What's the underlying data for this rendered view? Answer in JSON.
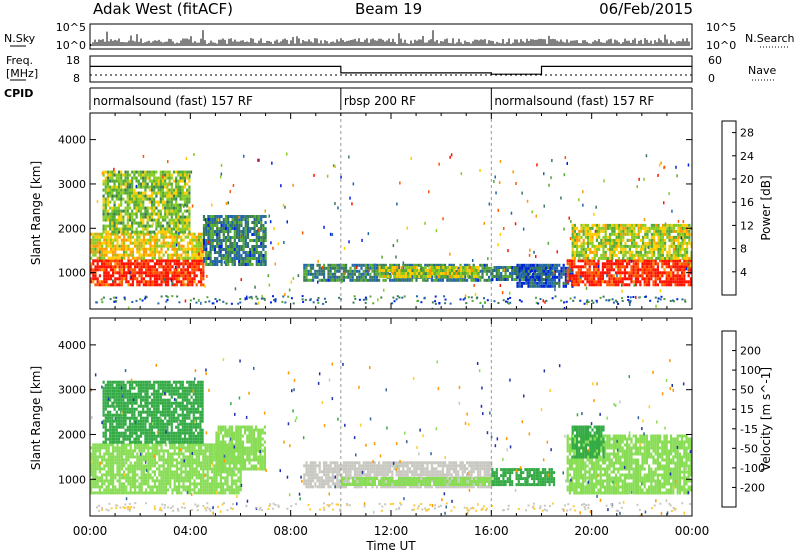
{
  "header": {
    "station": "Adak West (fitACF)",
    "beam": "Beam 19",
    "date": "06/Feb/2015"
  },
  "side_labels": {
    "nsky": "N.Sky",
    "freq": "Freq.",
    "freq_unit": "[MHz]",
    "cpid": "CPID",
    "nsearch": "N.Search",
    "nave": "Nave"
  },
  "strip_ticks": {
    "nsky_top": "10^5",
    "nsky_bottom": "10^0",
    "nsearch_top": "10^5",
    "nsearch_bottom": "10^0",
    "freq_top": "18",
    "freq_bottom": "8",
    "nave_top": "60",
    "nave_bottom": "0"
  },
  "cpid_segments": [
    {
      "label": "normalsound (fast) 157 RF",
      "start_h": 0,
      "end_h": 10
    },
    {
      "label": "rbsp 200 RF",
      "start_h": 10,
      "end_h": 16
    },
    {
      "label": "normalsound (fast) 157 RF",
      "start_h": 16,
      "end_h": 24
    }
  ],
  "axis": {
    "xlabel": "Time UT",
    "ylabel": "Slant Range [km]"
  },
  "colors": {
    "ground": "#c8c8c0",
    "power": [
      "#0022dd",
      "#2266aa",
      "#3a7a55",
      "#55aa33",
      "#88cc22",
      "#ffcc00",
      "#ff9900",
      "#ff5500",
      "#ff1100"
    ],
    "velocity": [
      "#2233aa",
      "#336699",
      "#33aa44",
      "#88dd55",
      "#c8c8c0",
      "#ffcc33",
      "#ff9900",
      "#ff5500",
      "#ee1100"
    ]
  },
  "chart_data": [
    {
      "type": "heatmap",
      "title": "Power",
      "xlabel": "Time UT",
      "ylabel": "Slant Range [km]",
      "x_ticks": [
        "00:00",
        "04:00",
        "08:00",
        "12:00",
        "16:00",
        "20:00",
        "00:00"
      ],
      "xlim_hours": [
        0,
        24
      ],
      "y_ticks": [
        1000,
        2000,
        3000,
        4000
      ],
      "ylim_km": [
        180,
        4600
      ],
      "colorbar": {
        "label": "Power [dB]",
        "ticks": [
          4,
          8,
          12,
          16,
          20,
          24,
          28
        ],
        "range": [
          0,
          30
        ]
      },
      "regions": [
        {
          "t0": 0.0,
          "t1": 4.5,
          "r0": 700,
          "r1": 1300,
          "level": 28
        },
        {
          "t0": 0.0,
          "t1": 4.5,
          "r0": 1300,
          "r1": 1900,
          "level": 18
        },
        {
          "t0": 0.5,
          "t1": 4.0,
          "r0": 1900,
          "r1": 3300,
          "level": 14
        },
        {
          "t0": 4.5,
          "t1": 7.0,
          "r0": 1200,
          "r1": 2300,
          "level": 8
        },
        {
          "t0": 8.5,
          "t1": 16.0,
          "r0": 800,
          "r1": 1200,
          "level": 8
        },
        {
          "t0": 11.5,
          "t1": 15.5,
          "r0": 900,
          "r1": 1150,
          "level": 16
        },
        {
          "t0": 16.0,
          "t1": 18.5,
          "r0": 850,
          "r1": 1150,
          "level": 8
        },
        {
          "t0": 17.0,
          "t1": 19.2,
          "r0": 700,
          "r1": 1200,
          "level": 4
        },
        {
          "t0": 19.0,
          "t1": 24.0,
          "r0": 700,
          "r1": 1300,
          "level": 28
        },
        {
          "t0": 19.2,
          "t1": 24.0,
          "r0": 1300,
          "r1": 2100,
          "level": 16
        }
      ]
    },
    {
      "type": "heatmap",
      "title": "Velocity",
      "xlabel": "Time UT",
      "ylabel": "Slant Range [km]",
      "x_ticks": [
        "00:00",
        "04:00",
        "08:00",
        "12:00",
        "16:00",
        "20:00",
        "00:00"
      ],
      "xlim_hours": [
        0,
        24
      ],
      "y_ticks": [
        1000,
        2000,
        3000,
        4000
      ],
      "ylim_km": [
        180,
        4600
      ],
      "colorbar": {
        "label": "Velocity [m s^-1]",
        "ticks": [
          200,
          100,
          50,
          15,
          -15,
          -50,
          -100,
          -200
        ],
        "range": [
          -250,
          250
        ]
      },
      "regions": [
        {
          "t0": 0.0,
          "t1": 6.0,
          "r0": 700,
          "r1": 1800,
          "level": 0
        },
        {
          "t0": 5.0,
          "t1": 7.0,
          "r0": 1200,
          "r1": 2200,
          "level": 0
        },
        {
          "t0": 0.5,
          "t1": 4.5,
          "r0": 1800,
          "r1": 3200,
          "level": 30
        },
        {
          "t0": 8.5,
          "t1": 16.0,
          "r0": 800,
          "r1": 1400,
          "level": -40
        },
        {
          "t0": 10.0,
          "t1": 16.0,
          "r0": 850,
          "r1": 1050,
          "level": 0
        },
        {
          "t0": 16.0,
          "t1": 18.5,
          "r0": 900,
          "r1": 1250,
          "level": 40
        },
        {
          "t0": 19.0,
          "t1": 24.0,
          "r0": 700,
          "r1": 2000,
          "level": 0
        },
        {
          "t0": 19.2,
          "t1": 20.5,
          "r0": 1500,
          "r1": 2200,
          "level": 40
        }
      ]
    }
  ]
}
